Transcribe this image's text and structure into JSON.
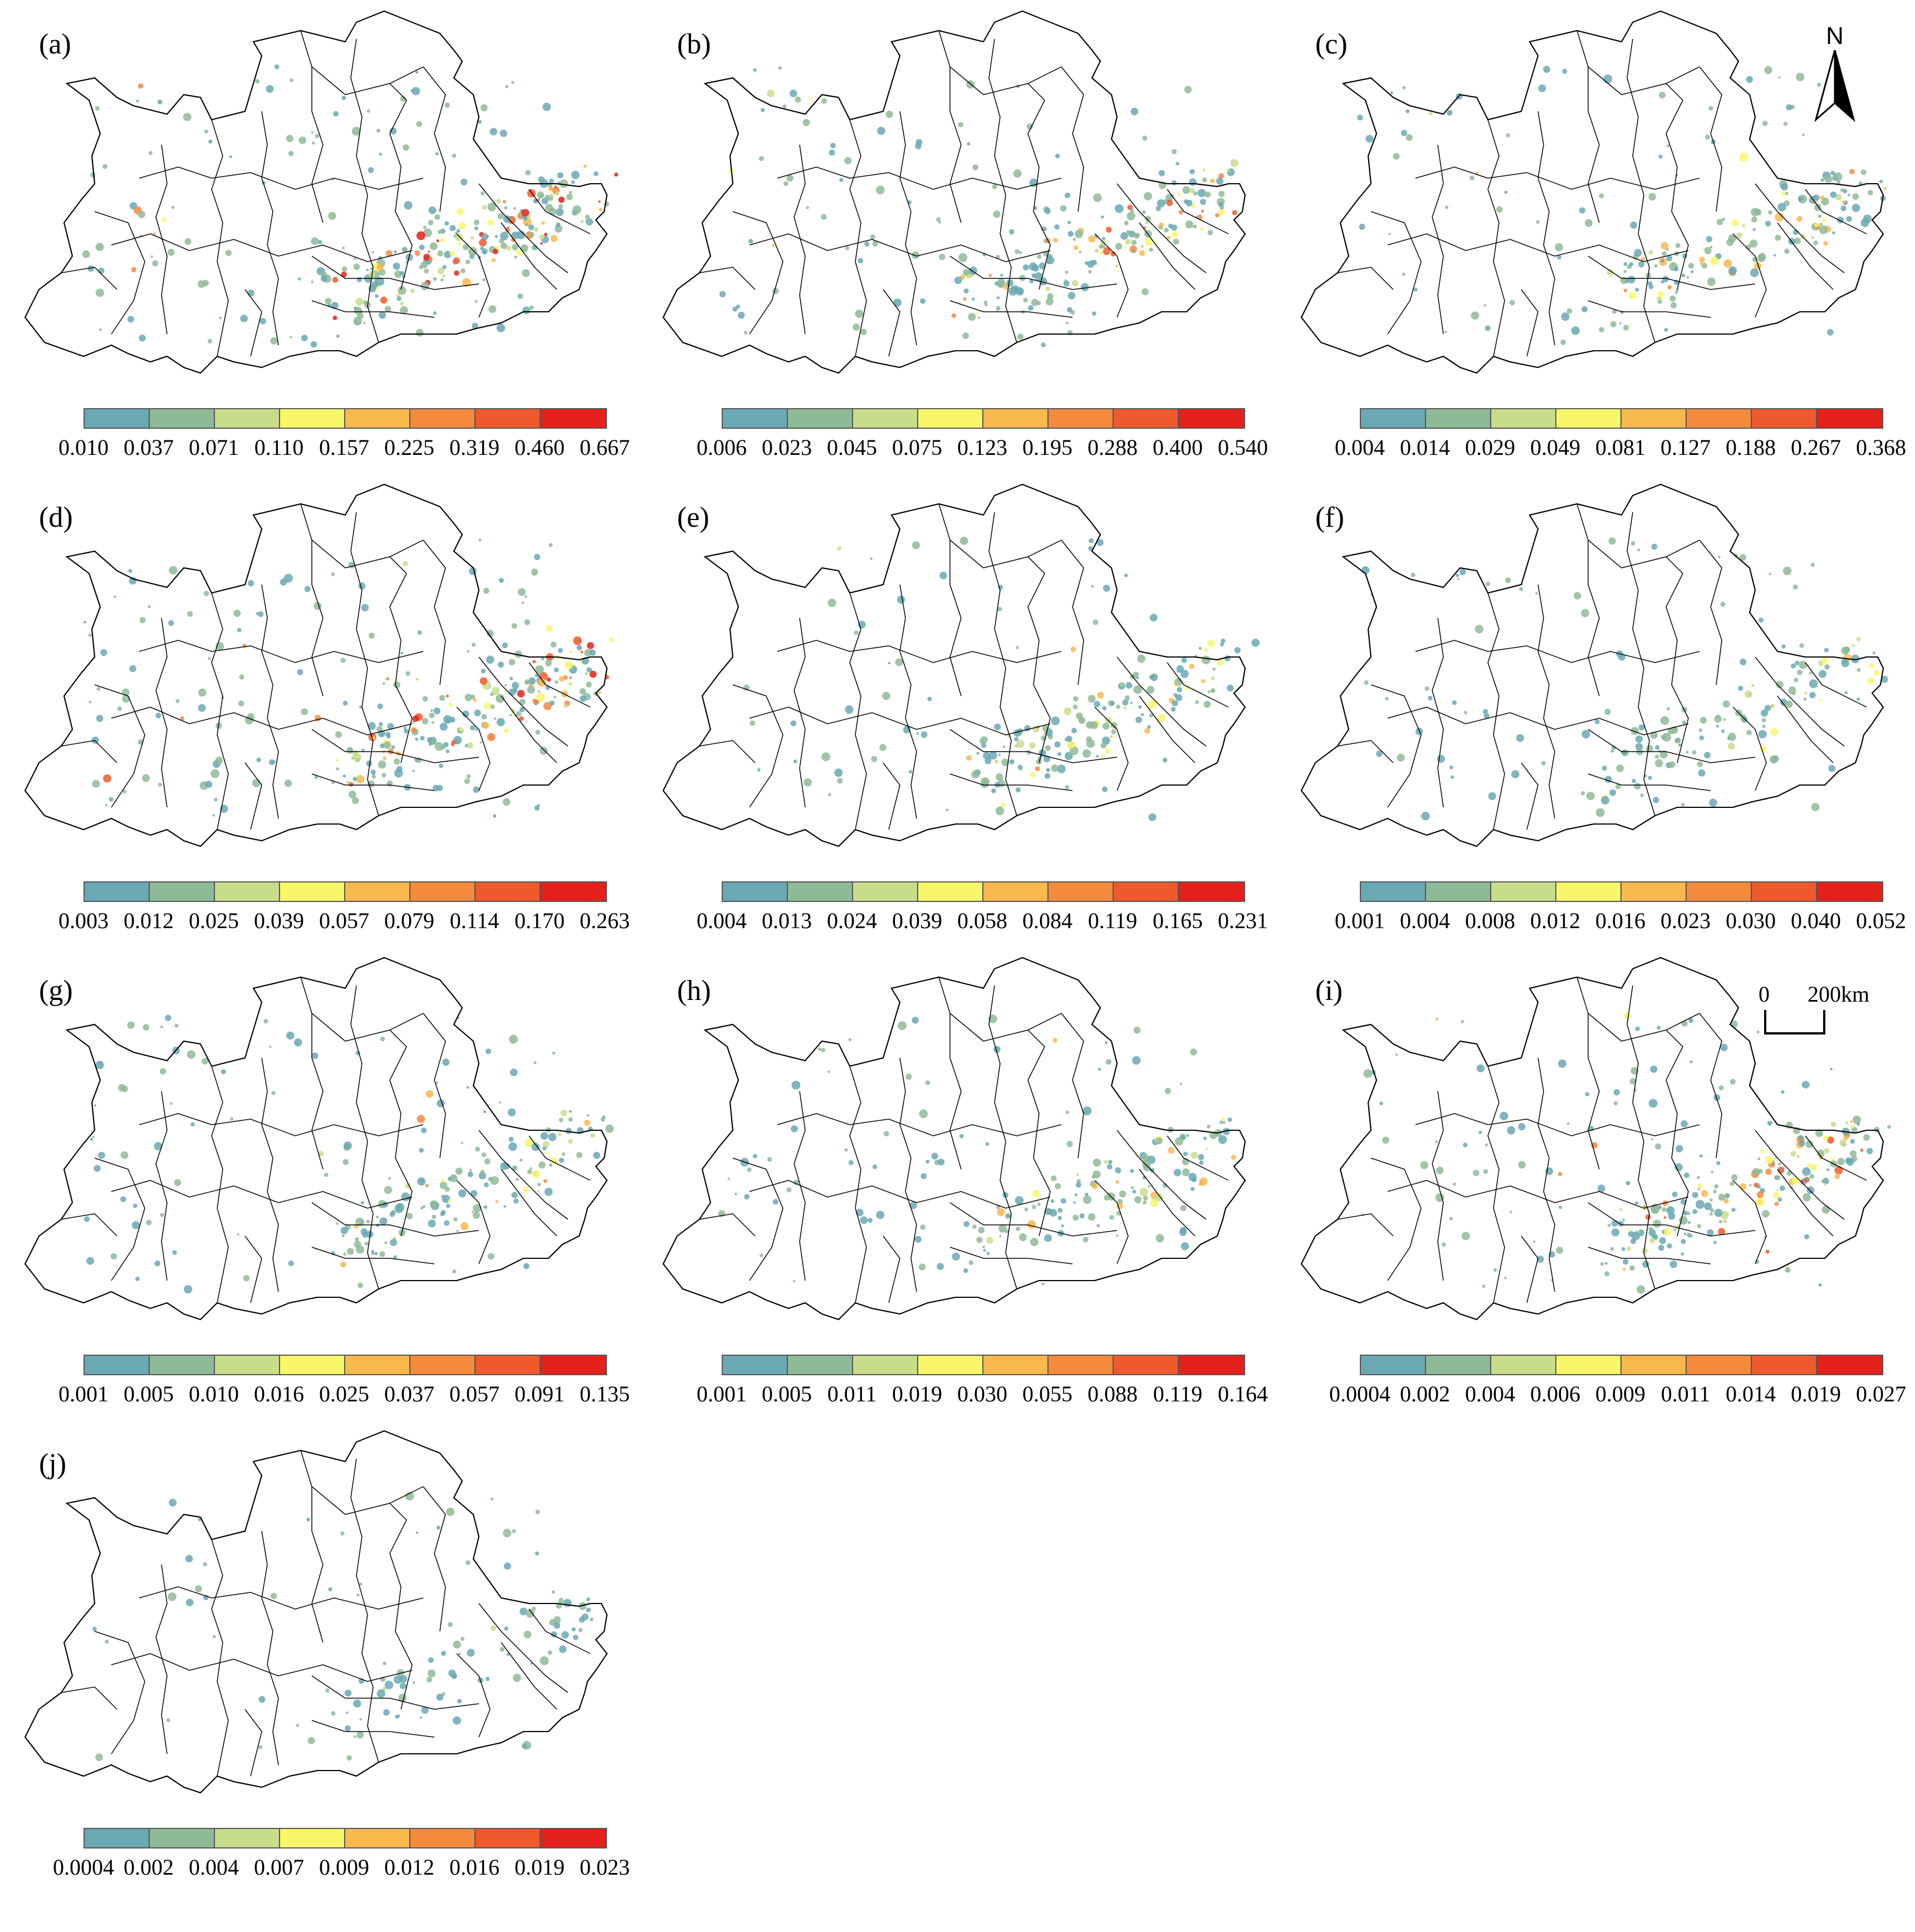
{
  "figure": {
    "boundary_color": "#000000",
    "dot_color": "#6da9b3",
    "north_label": "N",
    "scale_zero": "0",
    "scale_distance": "200km"
  },
  "legend_colors": [
    "#6aa8b4",
    "#8fba97",
    "#c8dd8a",
    "#f8f76a",
    "#f9b84e",
    "#f48a3c",
    "#ee5a2e",
    "#e4211c"
  ],
  "panels": [
    {
      "label": "(a)",
      "ticks": [
        "0.010",
        "0.037",
        "0.071",
        "0.110",
        "0.157",
        "0.225",
        "0.319",
        "0.460",
        "0.667"
      ],
      "intensity": 1.0
    },
    {
      "label": "(b)",
      "ticks": [
        "0.006",
        "0.023",
        "0.045",
        "0.075",
        "0.123",
        "0.195",
        "0.288",
        "0.400",
        "0.540"
      ],
      "intensity": 0.75
    },
    {
      "label": "(c)",
      "ticks": [
        "0.004",
        "0.014",
        "0.029",
        "0.049",
        "0.081",
        "0.127",
        "0.188",
        "0.267",
        "0.368"
      ],
      "intensity": 0.6
    },
    {
      "label": "(d)",
      "ticks": [
        "0.003",
        "0.012",
        "0.025",
        "0.039",
        "0.057",
        "0.079",
        "0.114",
        "0.170",
        "0.263"
      ],
      "intensity": 0.95
    },
    {
      "label": "(e)",
      "ticks": [
        "0.004",
        "0.013",
        "0.024",
        "0.039",
        "0.058",
        "0.084",
        "0.119",
        "0.165",
        "0.231"
      ],
      "intensity": 0.55
    },
    {
      "label": "(f)",
      "ticks": [
        "0.001",
        "0.004",
        "0.008",
        "0.012",
        "0.016",
        "0.023",
        "0.030",
        "0.040",
        "0.052"
      ],
      "intensity": 0.45
    },
    {
      "label": "(g)",
      "ticks": [
        "0.001",
        "0.005",
        "0.010",
        "0.016",
        "0.025",
        "0.037",
        "0.057",
        "0.091",
        "0.135"
      ],
      "intensity": 0.6
    },
    {
      "label": "(h)",
      "ticks": [
        "0.001",
        "0.005",
        "0.011",
        "0.019",
        "0.030",
        "0.055",
        "0.088",
        "0.119",
        "0.164"
      ],
      "intensity": 0.5
    },
    {
      "label": "(i)",
      "ticks": [
        "0.0004",
        "0.002",
        "0.004",
        "0.006",
        "0.009",
        "0.011",
        "0.014",
        "0.019",
        "0.027"
      ],
      "intensity": 0.8
    },
    {
      "label": "(j)",
      "ticks": [
        "0.0004",
        "0.002",
        "0.004",
        "0.007",
        "0.009",
        "0.012",
        "0.016",
        "0.019",
        "0.023"
      ],
      "intensity": 0.2
    }
  ]
}
